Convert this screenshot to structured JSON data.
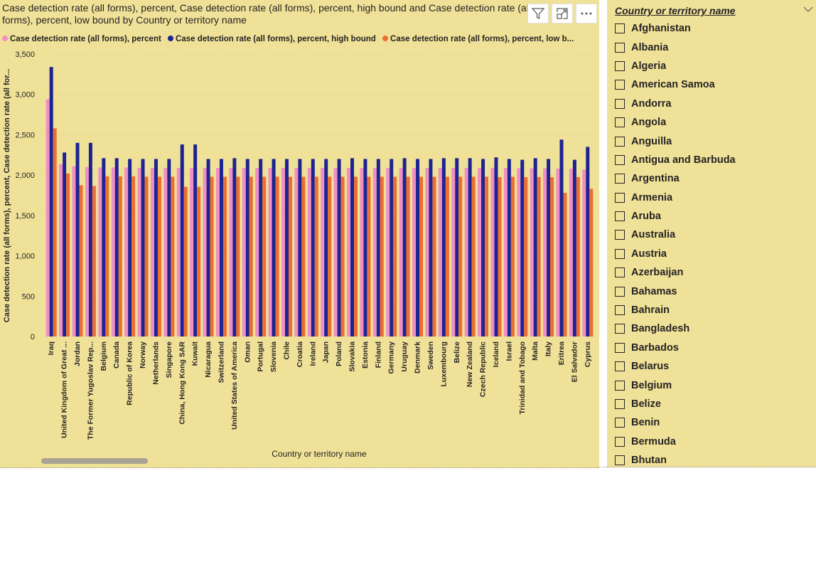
{
  "chart": {
    "title": "Case detection rate (all forms), percent, Case detection rate (all forms), percent, high bound and Case detection rate (all forms), percent, low bound by Country or territory name",
    "header_buttons": [
      {
        "name": "filter-icon",
        "label": "Filter"
      },
      {
        "name": "focus-mode-icon",
        "label": "Focus mode"
      },
      {
        "name": "more-options-icon",
        "label": "More options"
      }
    ]
  },
  "chart_data": {
    "type": "bar",
    "xlabel": "Country or territory name",
    "ylabel": "Case detection rate (all forms), percent, Case detection rate (all for...",
    "ylim": [
      0,
      3500
    ],
    "yticks": [
      0,
      500,
      1000,
      1500,
      2000,
      2500,
      3000,
      3500
    ],
    "ytick_labels": [
      "0",
      "500",
      "1,000",
      "1,500",
      "2,000",
      "2,500",
      "3,000",
      "3,500"
    ],
    "grid": true,
    "legend_placement": "top-left",
    "categories": [
      "Iraq",
      "United Kingdom of Great ...",
      "Jordan",
      "The Former Yugoslav Rep...",
      "Belgium",
      "Canada",
      "Republic of Korea",
      "Norway",
      "Netherlands",
      "Singapore",
      "China, Hong Kong SAR",
      "Kuwait",
      "Nicaragua",
      "Switzerland",
      "United States of America",
      "Oman",
      "Portugal",
      "Slovenia",
      "Chile",
      "Croatia",
      "Ireland",
      "Japan",
      "Poland",
      "Slovakia",
      "Estonia",
      "Finland",
      "Germany",
      "Uruguay",
      "Denmark",
      "Sweden",
      "Luxembourg",
      "Belize",
      "New Zealand",
      "Czech Republic",
      "Iceland",
      "Israel",
      "Trinidad and Tobago",
      "Malta",
      "Italy",
      "Eritrea",
      "El Salvador",
      "Cyprus"
    ],
    "series": [
      {
        "name": "Case detection rate (all forms), percent",
        "color": "#f08fc6",
        "values": [
          2940,
          2135,
          2110,
          2100,
          2095,
          2095,
          2095,
          2090,
          2090,
          2090,
          2090,
          2090,
          2090,
          2090,
          2090,
          2090,
          2090,
          2090,
          2090,
          2090,
          2090,
          2090,
          2090,
          2090,
          2090,
          2090,
          2090,
          2090,
          2090,
          2090,
          2090,
          2090,
          2090,
          2090,
          2090,
          2090,
          2085,
          2085,
          2085,
          2080,
          2080,
          2070
        ]
      },
      {
        "name": "Case detection rate (all forms), percent, high bound",
        "color": "#1b2490",
        "values": [
          3340,
          2280,
          2400,
          2400,
          2210,
          2210,
          2200,
          2200,
          2200,
          2200,
          2380,
          2380,
          2200,
          2200,
          2210,
          2200,
          2200,
          2200,
          2200,
          2200,
          2200,
          2200,
          2200,
          2210,
          2200,
          2200,
          2200,
          2210,
          2200,
          2200,
          2210,
          2210,
          2210,
          2200,
          2220,
          2200,
          2190,
          2210,
          2200,
          2440,
          2190,
          2350
        ]
      },
      {
        "name": "Case detection rate (all forms), percent, low b...",
        "color": "#ec6e33",
        "values": [
          2580,
          2020,
          1875,
          1865,
          1985,
          1985,
          1985,
          1980,
          1980,
          1980,
          1855,
          1855,
          1980,
          1980,
          1980,
          1980,
          1980,
          1980,
          1980,
          1980,
          1980,
          1980,
          1980,
          1980,
          1980,
          1980,
          1980,
          1980,
          1980,
          1980,
          1980,
          1980,
          1980,
          1980,
          1975,
          1980,
          1975,
          1975,
          1975,
          1780,
          1975,
          1830
        ]
      }
    ]
  },
  "slicer": {
    "header": "Country or territory name",
    "items": [
      "Afghanistan",
      "Albania",
      "Algeria",
      "American Samoa",
      "Andorra",
      "Angola",
      "Anguilla",
      "Antigua and Barbuda",
      "Argentina",
      "Armenia",
      "Aruba",
      "Australia",
      "Austria",
      "Azerbaijan",
      "Bahamas",
      "Bahrain",
      "Bangladesh",
      "Barbados",
      "Belarus",
      "Belgium",
      "Belize",
      "Benin",
      "Bermuda",
      "Bhutan"
    ]
  },
  "colors": {
    "background": "#f0e199",
    "gridline": "#cdc287",
    "text": "#252423"
  }
}
